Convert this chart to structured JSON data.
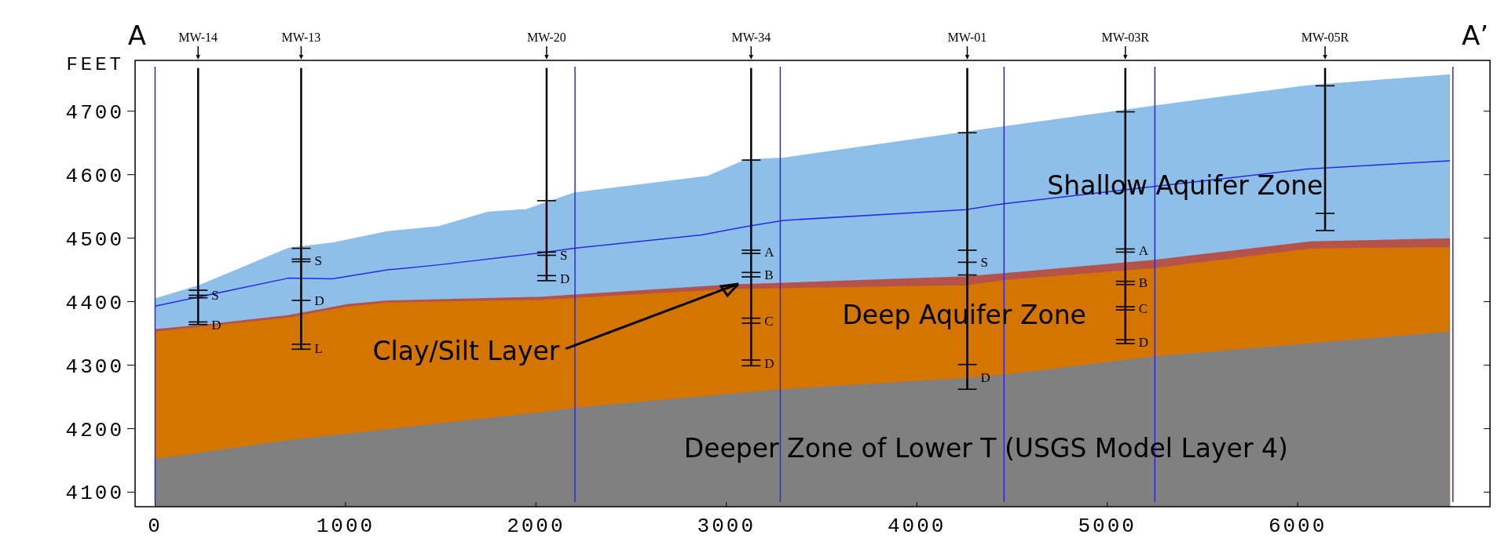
{
  "chart_data": {
    "type": "area",
    "ylabel": "FEET",
    "xlim": [
      -105,
      7010
    ],
    "ylim": [
      4077,
      4780
    ],
    "xticks": [
      0,
      1000,
      2000,
      3000,
      4000,
      5000,
      6000
    ],
    "yticks": [
      4100,
      4200,
      4300,
      4400,
      4500,
      4600,
      4700
    ],
    "series": [
      {
        "color": "#8dbfe8",
        "x": [
          0,
          230,
          700,
          930,
          1220,
          1490,
          1750,
          1950,
          2200,
          2900,
          3100,
          3300,
          4450,
          5250,
          6050,
          6800
        ],
        "values": [
          4404,
          4425,
          4484,
          4492,
          4510,
          4518,
          4541,
          4545,
          4571,
          4597,
          4623,
          4626,
          4675,
          4708,
          4740,
          4757
        ]
      },
      {
        "color": "#b5524a",
        "x": [
          0,
          230,
          700,
          1005,
          1220,
          2030,
          3016,
          4259,
          4457,
          5248,
          6067,
          6800
        ],
        "values": [
          4356,
          4362,
          4378,
          4395,
          4401,
          4407,
          4426,
          4439,
          4444,
          4465,
          4494,
          4499
        ]
      },
      {
        "color": "#d47500",
        "x": [
          0,
          700,
          1005,
          1220,
          2030,
          3016,
          4259,
          4457,
          5248,
          6067,
          6800
        ],
        "values": [
          4352,
          4374,
          4391,
          4398,
          4402,
          4419,
          4425,
          4433,
          4452,
          4483,
          4485
        ]
      },
      {
        "color": "#808080",
        "x": [
          0,
          700,
          1005,
          2030,
          2205,
          3286,
          4259,
          4457,
          5248,
          6800
        ],
        "values": [
          4151,
          4181,
          4191,
          4225,
          4232,
          4261,
          4279,
          4284,
          4313,
          4352
        ]
      },
      {
        "type": "line",
        "color": "#2a2ae6",
        "marker": "none",
        "x": [
          0,
          700,
          930,
          1220,
          1490,
          2030,
          2200,
          2870,
          3100,
          3300,
          4260,
          4450,
          6050,
          6800
        ],
        "values": [
          4393,
          4437,
          4436,
          4450,
          4458,
          4477,
          4484,
          4505,
          4518,
          4528,
          4545,
          4554,
          4609,
          4622
        ]
      },
      {
        "type": "line",
        "name": "MW-14",
        "color": "#000000",
        "x": [
          226,
          226,
          226,
          226,
          226,
          226
        ],
        "values": [
          4768,
          4418,
          4410,
          4406,
          4368,
          4364
        ]
      },
      {
        "type": "line",
        "name": "MW-13",
        "color": "#000000",
        "x": [
          767,
          767,
          767,
          767,
          767,
          767,
          767
        ],
        "values": [
          4768,
          4484,
          4467,
          4463,
          4402,
          4333,
          4325
        ]
      },
      {
        "type": "line",
        "name": "MW-20",
        "color": "#000000",
        "x": [
          2056,
          2056,
          2056,
          2056,
          2056,
          2056
        ],
        "values": [
          4768,
          4559,
          4478,
          4473,
          4441,
          4433
        ]
      },
      {
        "type": "line",
        "name": "MW-34",
        "color": "#000000",
        "x": [
          3130,
          3130,
          3130,
          3130,
          3130,
          3130,
          3130,
          3130,
          3130,
          3130
        ],
        "values": [
          4768,
          4623,
          4481,
          4476,
          4446,
          4439,
          4374,
          4366,
          4308,
          4299
        ]
      },
      {
        "type": "line",
        "name": "MW-01",
        "color": "#000000",
        "x": [
          4265,
          4265,
          4265,
          4265,
          4265,
          4265,
          4265
        ],
        "values": [
          4768,
          4666,
          4481,
          4462,
          4442,
          4301,
          4262
        ]
      },
      {
        "type": "line",
        "name": "MW-03R",
        "color": "#000000",
        "x": [
          5095,
          5095,
          5095,
          5095,
          5095,
          5095,
          5095,
          5095,
          5095,
          5095
        ],
        "values": [
          4768,
          4699,
          4483,
          4478,
          4432,
          4427,
          4392,
          4387,
          4340,
          4334
        ]
      },
      {
        "type": "line",
        "name": "MW-05R",
        "color": "#000000",
        "x": [
          6144,
          6144,
          6144,
          6144
        ],
        "values": [
          4768,
          4740,
          4539,
          4512
        ]
      }
    ],
    "ref_lines": [
      {
        "axis": "x",
        "value": 0,
        "color": "#2a2ae6"
      },
      {
        "axis": "x",
        "value": 2205,
        "color": "#2a2ae6"
      },
      {
        "axis": "x",
        "value": 3283,
        "color": "#2a2ae6"
      },
      {
        "axis": "x",
        "value": 4458,
        "color": "#2a2ae6"
      },
      {
        "axis": "x",
        "value": 5250,
        "color": "#2a2ae6"
      },
      {
        "axis": "x",
        "value": 6815,
        "color": "#2a2ae6"
      }
    ],
    "annotations": [
      "A",
      "A’",
      "Shallow Aquifer Zone",
      "Deep Aquifer Zone",
      "Deeper Zone of Lower T (USGS Model Layer 4)",
      {
        "text": "Clay/Silt Layer",
        "x": 3063,
        "y": 4428
      },
      {
        "text": "S",
        "x": 226,
        "y": 4410
      },
      {
        "text": "D",
        "x": 226,
        "y": 4364
      },
      {
        "text": "S",
        "x": 767,
        "y": 4465
      },
      {
        "text": "D",
        "x": 767,
        "y": 4402
      },
      {
        "text": "L",
        "x": 767,
        "y": 4327
      },
      {
        "text": "S",
        "x": 2056,
        "y": 4474
      },
      {
        "text": "D",
        "x": 2056,
        "y": 4437
      },
      {
        "text": "A",
        "x": 3130,
        "y": 4479
      },
      {
        "text": "B",
        "x": 3130,
        "y": 4443
      },
      {
        "text": "C",
        "x": 3130,
        "y": 4370
      },
      {
        "text": "D",
        "x": 3130,
        "y": 4303
      },
      {
        "text": "S",
        "x": 4265,
        "y": 4462
      },
      {
        "text": "D",
        "x": 4265,
        "y": 4281
      },
      {
        "text": "A",
        "x": 5095,
        "y": 4481
      },
      {
        "text": "B",
        "x": 5095,
        "y": 4430
      },
      {
        "text": "C",
        "x": 5095,
        "y": 4390
      },
      {
        "text": "D",
        "x": 5095,
        "y": 4337
      }
    ]
  }
}
